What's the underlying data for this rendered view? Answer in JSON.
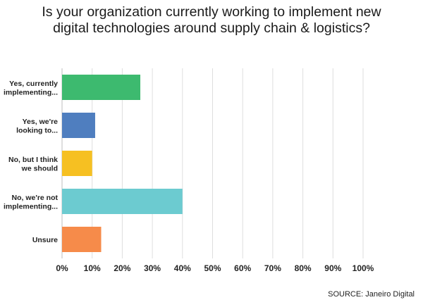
{
  "chart_data": {
    "type": "bar",
    "orientation": "horizontal",
    "title_lines": [
      "Is your organization currently working to implement new",
      "digital technologies around supply chain & logistics?"
    ],
    "categories": [
      [
        "Yes, currently",
        "implementing..."
      ],
      [
        "Yes, we're",
        "looking to..."
      ],
      [
        "No, but I think",
        "we should"
      ],
      [
        "No, we're not",
        "implementing..."
      ],
      [
        "Unsure"
      ]
    ],
    "values": [
      26,
      11,
      10,
      40,
      13
    ],
    "colors": [
      "#3dba6f",
      "#4f7ebf",
      "#f6c022",
      "#6ccbd0",
      "#f68b4a"
    ],
    "xlim": [
      0,
      100
    ],
    "xticks": [
      0,
      10,
      20,
      30,
      40,
      50,
      60,
      70,
      80,
      90,
      100
    ],
    "tick_suffix": "%",
    "grid": true
  },
  "source": "SOURCE: Janeiro Digital"
}
